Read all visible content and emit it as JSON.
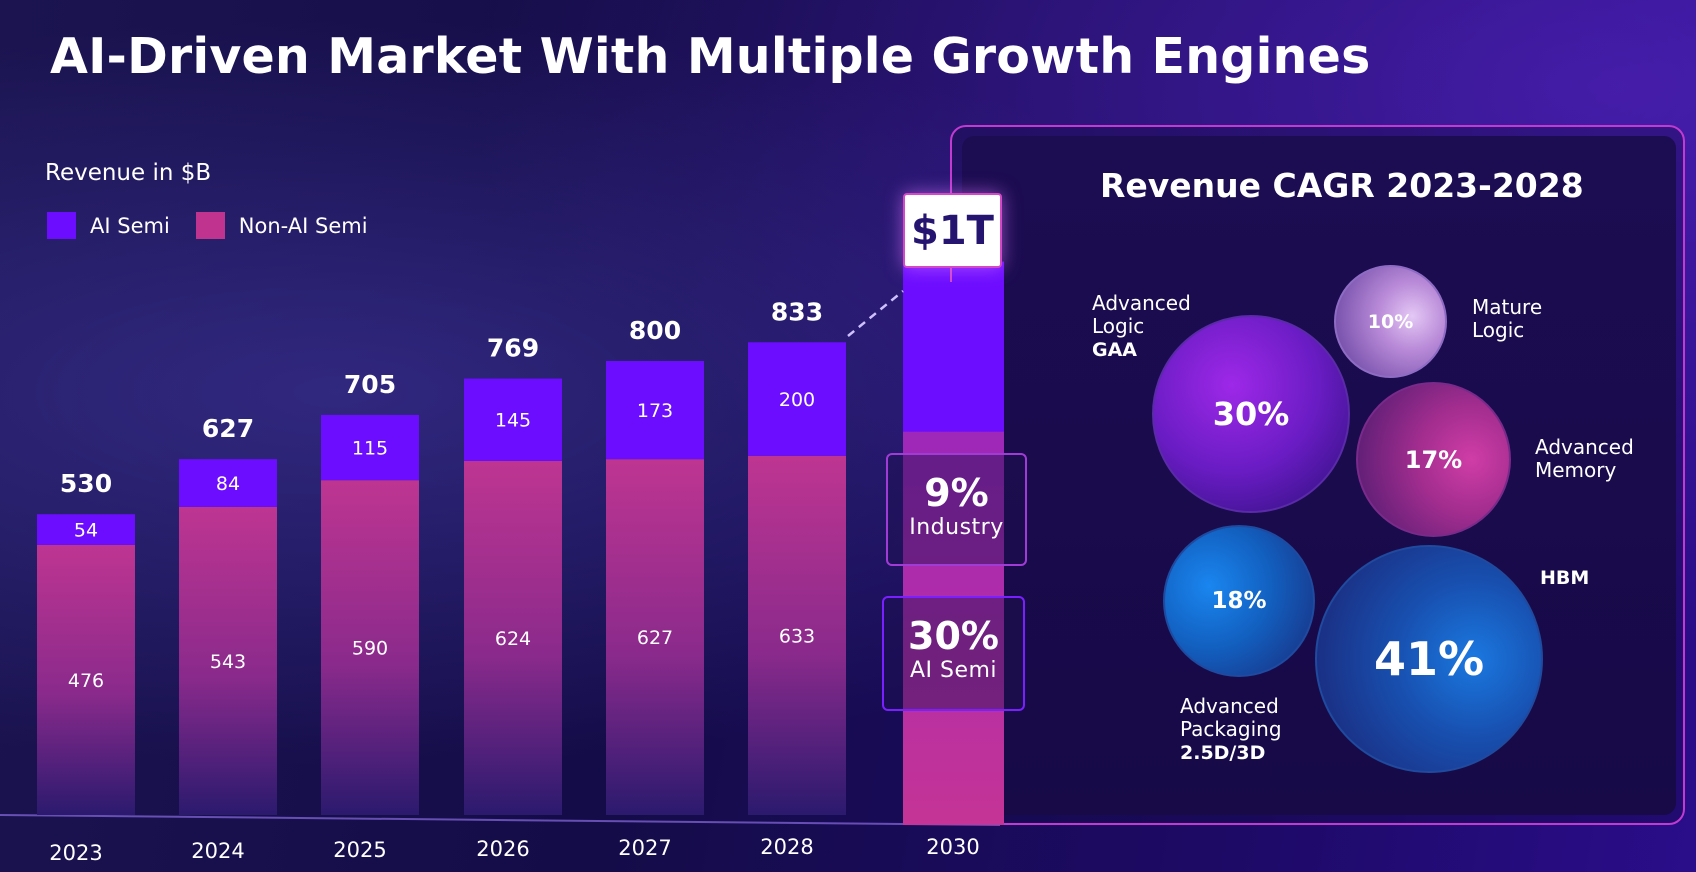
{
  "title": "AI-Driven Market With Multiple Growth Engines",
  "revenue_label": "Revenue in $B",
  "legend": [
    {
      "label": "AI Semi",
      "color": "#6d0dff"
    },
    {
      "label": "Non-AI Semi",
      "color": "#c0348f"
    }
  ],
  "chart_data": {
    "type": "bar",
    "stacked": true,
    "categories": [
      "2023",
      "2024",
      "2025",
      "2026",
      "2027",
      "2028",
      "2030"
    ],
    "series": [
      {
        "name": "Non-AI Semi",
        "values": [
          476,
          543,
          590,
          624,
          627,
          633,
          null
        ]
      },
      {
        "name": "AI Semi",
        "values": [
          54,
          84,
          115,
          145,
          173,
          200,
          null
        ]
      }
    ],
    "totals": [
      "530",
      "627",
      "705",
      "769",
      "800",
      "833",
      null
    ],
    "projection_2030": {
      "label": "$1T",
      "value": 1000
    },
    "ylabel": "Revenue in $B",
    "ylim": [
      0,
      1000
    ]
  },
  "callouts": [
    {
      "pct": "9%",
      "label": "Industry",
      "color": "#a13bd6"
    },
    {
      "pct": "30%",
      "label": "AI  Semi",
      "color": "#7a1fff"
    }
  ],
  "cagr": {
    "title": "Revenue CAGR 2023-2028",
    "bubbles": [
      {
        "name": "Advanced Logic GAA",
        "pct": "30%",
        "value": 30
      },
      {
        "name": "Mature Logic",
        "pct": "10%",
        "value": 10
      },
      {
        "name": "Advanced Memory",
        "pct": "17%",
        "value": 17
      },
      {
        "name": "Advanced Packaging 2.5D/3D",
        "pct": "18%",
        "value": 18
      },
      {
        "name": "HBM",
        "pct": "41%",
        "value": 41
      }
    ],
    "labels": {
      "adv_logic": [
        "Advanced",
        "Logic",
        "GAA"
      ],
      "mature_logic": [
        "Mature",
        "Logic"
      ],
      "adv_memory": [
        "Advanced",
        "Memory"
      ],
      "adv_packaging": [
        "Advanced",
        "Packaging",
        "2.5D/3D"
      ],
      "hbm": "HBM"
    }
  }
}
